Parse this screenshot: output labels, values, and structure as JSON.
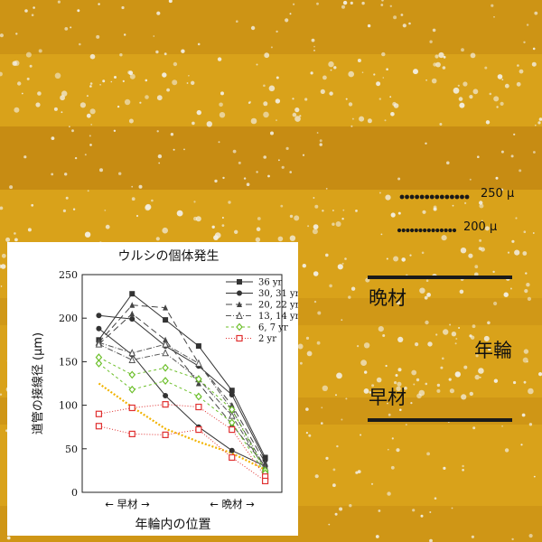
{
  "background": {
    "base_color": "#d9a21a",
    "dark_band_color": "#b87a0e",
    "pore_color": "#f3f0e6"
  },
  "scale_bars": [
    {
      "label": "250 μ"
    },
    {
      "label": "200 μ"
    }
  ],
  "annotations": {
    "late_wood": "晩材",
    "growth_ring": "年輪",
    "early_wood": "早材"
  },
  "chart_data": {
    "type": "line",
    "title": "ウルシの個体発生",
    "ylabel": "道管の接線径 (μm)",
    "xlabel": "年輪内の位置",
    "x_tick_left": "←  早材  →",
    "x_tick_right": "←  晩材  →",
    "x": [
      1,
      2,
      3,
      4,
      5,
      6
    ],
    "xlim": [
      0.5,
      6.5
    ],
    "ylim": [
      0,
      250
    ],
    "yticks": [
      "0",
      "50",
      "100",
      "150",
      "200",
      "250"
    ],
    "legend_position": "top-right",
    "series": [
      {
        "name": "36 yr",
        "color": "#333333",
        "dash": "",
        "marker": "square-filled",
        "values": [
          175,
          228,
          198,
          168,
          117,
          40
        ]
      },
      {
        "name": "30, 31 yr",
        "color": "#333333",
        "dash": "",
        "marker": "circle-filled",
        "values": [
          203,
          199,
          168,
          145,
          112,
          37
        ]
      },
      {
        "name": "",
        "color": "#333333",
        "dash": "",
        "marker": "circle-filled",
        "values": [
          188,
          158,
          111,
          75,
          48,
          30
        ]
      },
      {
        "name": "20, 22 yr",
        "color": "#444444",
        "dash": "7,4",
        "marker": "triangle-filled",
        "values": [
          172,
          215,
          212,
          148,
          100,
          34
        ]
      },
      {
        "name": "",
        "color": "#444444",
        "dash": "7,4",
        "marker": "triangle-filled",
        "values": [
          170,
          205,
          175,
          125,
          78,
          30
        ]
      },
      {
        "name": "13, 14 yr",
        "color": "#555555",
        "dash": "6,2,1,2",
        "marker": "triangle-open",
        "values": [
          172,
          160,
          170,
          148,
          95,
          28
        ]
      },
      {
        "name": "",
        "color": "#555555",
        "dash": "6,2,1,2",
        "marker": "triangle-open",
        "values": [
          170,
          152,
          160,
          130,
          88,
          26
        ]
      },
      {
        "name": "6, 7 yr",
        "color": "#6cbf2a",
        "dash": "3,3",
        "marker": "diamond-open",
        "values": [
          155,
          135,
          143,
          130,
          95,
          25
        ]
      },
      {
        "name": "",
        "color": "#6cbf2a",
        "dash": "3,3",
        "marker": "diamond-open",
        "values": [
          148,
          118,
          128,
          110,
          80,
          22
        ]
      },
      {
        "name": "2 yr",
        "color": "#e03030",
        "dash": "1,2",
        "marker": "square-open",
        "values": [
          90,
          97,
          101,
          98,
          72,
          18
        ]
      },
      {
        "name": "",
        "color": "#e03030",
        "dash": "1,2",
        "marker": "square-open",
        "values": [
          76,
          67,
          66,
          72,
          40,
          13
        ]
      }
    ],
    "trend_line": {
      "color": "#f2b300",
      "values": [
        125,
        98,
        73,
        58,
        45,
        26
      ]
    }
  }
}
